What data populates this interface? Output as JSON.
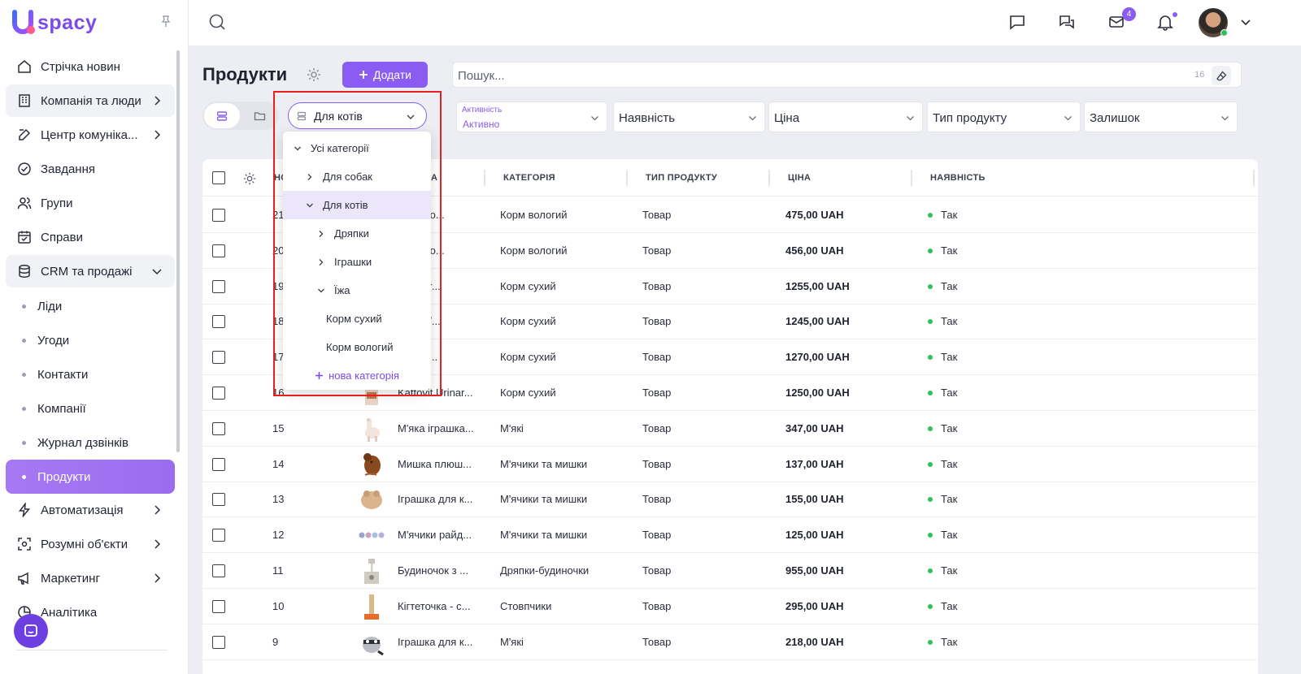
{
  "app": {
    "name": "spacy",
    "logo_letter": "U"
  },
  "sidebar": {
    "items": [
      {
        "key": "news",
        "label": "Стрічка новин",
        "icon": "home-icon",
        "has_chevron": false
      },
      {
        "key": "company",
        "label": "Компанія та люди",
        "icon": "building-icon",
        "has_chevron": true,
        "group": true
      },
      {
        "key": "comm",
        "label": "Центр комуніка...",
        "icon": "edit-icon",
        "has_chevron": true
      },
      {
        "key": "tasks",
        "label": "Завдання",
        "icon": "check-circle-icon",
        "has_chevron": false
      },
      {
        "key": "groups",
        "label": "Групи",
        "icon": "users-icon",
        "has_chevron": false
      },
      {
        "key": "cases",
        "label": "Справи",
        "icon": "calendar-check-icon",
        "has_chevron": false
      },
      {
        "key": "crm",
        "label": "CRM та продажі",
        "icon": "database-icon",
        "has_chevron": true,
        "group": true,
        "expanded": true
      }
    ],
    "crm_sub": [
      "Ліди",
      "Угоди",
      "Контакти",
      "Компанії",
      "Журнал дзвінків",
      "Продукти"
    ],
    "crm_sub_active": "Продукти",
    "items_after": [
      {
        "key": "automation",
        "label": "Автоматизація",
        "icon": "lightning-icon",
        "has_chevron": true
      },
      {
        "key": "smart",
        "label": "Розумні об'єкти",
        "icon": "scan-icon",
        "has_chevron": true
      },
      {
        "key": "marketing",
        "label": "Маркетинг",
        "icon": "megaphone-icon",
        "has_chevron": true
      },
      {
        "key": "analytics",
        "label": "Аналітика",
        "icon": "chart-icon",
        "has_chevron": false
      }
    ]
  },
  "topbar": {
    "mail_badge": "4",
    "icons": [
      "chat-icon",
      "conversations-icon",
      "mail-icon",
      "bell-icon",
      "avatar",
      "chevron-down-icon"
    ]
  },
  "header": {
    "title": "Продукти",
    "add_label": "Додати",
    "search_placeholder": "Пошук...",
    "search_count": "16"
  },
  "filters": {
    "category_selected": "Для котів",
    "activity": {
      "label": "Активність",
      "value": "Активно"
    },
    "availability": "Наявність",
    "price": "Ціна",
    "product_type": "Тип продукту",
    "stock": "Залишок"
  },
  "dropdown": {
    "items": [
      {
        "label": "Усі категорії",
        "level": 0,
        "chevron": "down"
      },
      {
        "label": "Для собак",
        "level": 1,
        "chevron": "right"
      },
      {
        "label": "Для котів",
        "level": 1,
        "chevron": "down",
        "selected": true
      },
      {
        "label": "Дряпки",
        "level": 2,
        "chevron": "right"
      },
      {
        "label": "Іграшки",
        "level": 2,
        "chevron": "right"
      },
      {
        "label": "Їжа",
        "level": 2,
        "chevron": "down"
      },
      {
        "label": "Корм сухий",
        "level": 3,
        "chevron": "none"
      },
      {
        "label": "Корм вологий",
        "level": 3,
        "chevron": "none"
      }
    ],
    "new_category": "нова категорія"
  },
  "table": {
    "columns": {
      "num": "НО",
      "name": "А",
      "category": "КАТЕГОРІЯ",
      "type": "ТИП ПРОДУКТУ",
      "price": "ЦІНА",
      "availability": "НАЯВНІСТЬ"
    },
    "rows": [
      {
        "num": "21",
        "name": "ки Katto...",
        "category": "Корм вологий",
        "type": "Товар",
        "price": "475,00 UAH",
        "avail": "Так",
        "thumb": "none"
      },
      {
        "num": "20",
        "name": "ки Katto...",
        "category": "Корм вологий",
        "type": "Товар",
        "price": "456,00 UAH",
        "avail": "Так",
        "thumb": "none"
      },
      {
        "num": "19",
        "name": "t Urinar...",
        "category": "Корм сухий",
        "type": "Товар",
        "price": "1255,00 UAH",
        "avail": "Так",
        "thumb": "none"
      },
      {
        "num": "18",
        "name": "t Niere/...",
        "category": "Корм сухий",
        "type": "Товар",
        "price": "1245,00 UAH",
        "avail": "Так",
        "thumb": "none"
      },
      {
        "num": "17",
        "name": "t Gastr...",
        "category": "Корм сухий",
        "type": "Товар",
        "price": "1270,00 UAH",
        "avail": "Так",
        "thumb": "none"
      },
      {
        "num": "16",
        "name": "Kattovit Urinar...",
        "category": "Корм сухий",
        "type": "Товар",
        "price": "1250,00 UAH",
        "avail": "Так",
        "thumb": "box"
      },
      {
        "num": "15",
        "name": "М'яка іграшка...",
        "category": "М'які",
        "type": "Товар",
        "price": "347,00 UAH",
        "avail": "Так",
        "thumb": "llama"
      },
      {
        "num": "14",
        "name": "Мишка плюш...",
        "category": "М'ячики та мишки",
        "type": "Товар",
        "price": "137,00 UAH",
        "avail": "Так",
        "thumb": "mouse"
      },
      {
        "num": "13",
        "name": "Іграшка для к...",
        "category": "М'ячики та мишки",
        "type": "Товар",
        "price": "155,00 UAH",
        "avail": "Так",
        "thumb": "plush"
      },
      {
        "num": "12",
        "name": "М'ячики райд...",
        "category": "М'ячики та мишки",
        "type": "Товар",
        "price": "125,00 UAH",
        "avail": "Так",
        "thumb": "balls"
      },
      {
        "num": "11",
        "name": "Будиночок з ...",
        "category": "Дряпки-будиночки",
        "type": "Товар",
        "price": "955,00 UAH",
        "avail": "Так",
        "thumb": "house"
      },
      {
        "num": "10",
        "name": "Кігтеточка - с...",
        "category": "Стовпчики",
        "type": "Товар",
        "price": "295,00 UAH",
        "avail": "Так",
        "thumb": "post"
      },
      {
        "num": "9",
        "name": "Іграшка для к...",
        "category": "М'які",
        "type": "Товар",
        "price": "218,00 UAH",
        "avail": "Так",
        "thumb": "raccoon"
      }
    ]
  },
  "colors": {
    "accent": "#8a5cf1",
    "highlight": "#e5201e",
    "online": "#2fc15a"
  }
}
